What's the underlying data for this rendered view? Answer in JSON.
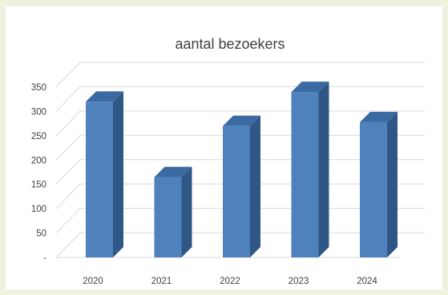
{
  "colors": {
    "background": "#eef2df",
    "panel": "#ffffff",
    "bar_front": "#4f81bd",
    "bar_side": "#2f5785",
    "bar_top": "#3b6aa3",
    "grid": "#d9d9d9",
    "text": "#404040"
  },
  "chart_data": {
    "type": "bar",
    "title": "aantal bezoekers",
    "categories": [
      "2020",
      "2021",
      "2022",
      "2023",
      "2024"
    ],
    "values": [
      320,
      165,
      270,
      340,
      278
    ],
    "ylim": [
      0,
      350
    ],
    "yticks": [
      0,
      50,
      100,
      150,
      200,
      250,
      300,
      350
    ],
    "ytick_labels": [
      "-",
      "50",
      "100",
      "150",
      "200",
      "250",
      "300",
      "350"
    ],
    "grid": true,
    "legend": "none",
    "style": "3d-column"
  }
}
